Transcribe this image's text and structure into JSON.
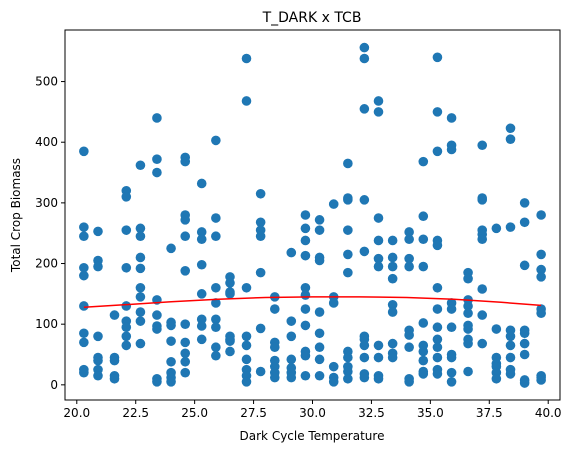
{
  "chart_data": {
    "type": "scatter",
    "title": "T_DARK x TCB",
    "xlabel": "Dark Cycle Temperature",
    "ylabel": "Total Crop Biomass",
    "xlim": [
      19.5,
      40.5
    ],
    "ylim": [
      -25,
      585
    ],
    "xticks": [
      "20.0",
      "22.5",
      "25.0",
      "27.5",
      "30.0",
      "32.5",
      "35.0",
      "37.5",
      "40.0"
    ],
    "yticks": [
      "0",
      "100",
      "200",
      "300",
      "400",
      "500"
    ],
    "grid": false,
    "point_color": "#1f77b4",
    "trend_color": "#ff0000",
    "points": [
      [
        20.3,
        385
      ],
      [
        20.3,
        260
      ],
      [
        20.3,
        245
      ],
      [
        20.3,
        193
      ],
      [
        20.3,
        180
      ],
      [
        20.3,
        130
      ],
      [
        20.3,
        85
      ],
      [
        20.3,
        70
      ],
      [
        20.3,
        25
      ],
      [
        20.3,
        20
      ],
      [
        20.9,
        253
      ],
      [
        20.9,
        205
      ],
      [
        20.9,
        195
      ],
      [
        20.9,
        80
      ],
      [
        20.9,
        45
      ],
      [
        20.9,
        40
      ],
      [
        20.9,
        25
      ],
      [
        20.9,
        15
      ],
      [
        21.6,
        115
      ],
      [
        21.6,
        45
      ],
      [
        21.6,
        40
      ],
      [
        21.6,
        15
      ],
      [
        21.6,
        10
      ],
      [
        22.1,
        320
      ],
      [
        22.1,
        310
      ],
      [
        22.1,
        255
      ],
      [
        22.1,
        193
      ],
      [
        22.1,
        130
      ],
      [
        22.1,
        105
      ],
      [
        22.1,
        95
      ],
      [
        22.1,
        80
      ],
      [
        22.1,
        65
      ],
      [
        22.7,
        362
      ],
      [
        22.7,
        258
      ],
      [
        22.7,
        245
      ],
      [
        22.7,
        210
      ],
      [
        22.7,
        192
      ],
      [
        22.7,
        160
      ],
      [
        22.7,
        145
      ],
      [
        22.7,
        120
      ],
      [
        22.7,
        105
      ],
      [
        22.7,
        68
      ],
      [
        23.4,
        440
      ],
      [
        23.4,
        372
      ],
      [
        23.4,
        350
      ],
      [
        23.4,
        140
      ],
      [
        23.4,
        115
      ],
      [
        23.4,
        97
      ],
      [
        23.4,
        92
      ],
      [
        23.4,
        10
      ],
      [
        23.4,
        5
      ],
      [
        24.0,
        225
      ],
      [
        24.0,
        103
      ],
      [
        24.0,
        98
      ],
      [
        24.0,
        72
      ],
      [
        24.0,
        38
      ],
      [
        24.0,
        20
      ],
      [
        24.0,
        12
      ],
      [
        24.0,
        5
      ],
      [
        24.6,
        375
      ],
      [
        24.6,
        368
      ],
      [
        24.6,
        280
      ],
      [
        24.6,
        272
      ],
      [
        24.6,
        245
      ],
      [
        24.6,
        188
      ],
      [
        24.6,
        100
      ],
      [
        24.6,
        70
      ],
      [
        24.6,
        52
      ],
      [
        24.6,
        38
      ],
      [
        24.6,
        20
      ],
      [
        25.3,
        332
      ],
      [
        25.3,
        252
      ],
      [
        25.3,
        240
      ],
      [
        25.3,
        198
      ],
      [
        25.3,
        150
      ],
      [
        25.3,
        108
      ],
      [
        25.3,
        97
      ],
      [
        25.3,
        75
      ],
      [
        25.9,
        403
      ],
      [
        25.9,
        275
      ],
      [
        25.9,
        245
      ],
      [
        25.9,
        160
      ],
      [
        25.9,
        135
      ],
      [
        25.9,
        108
      ],
      [
        25.9,
        95
      ],
      [
        25.9,
        62
      ],
      [
        25.9,
        48
      ],
      [
        26.5,
        178
      ],
      [
        26.5,
        168
      ],
      [
        26.5,
        153
      ],
      [
        26.5,
        150
      ],
      [
        26.5,
        80
      ],
      [
        26.5,
        75
      ],
      [
        26.5,
        72
      ],
      [
        26.5,
        55
      ],
      [
        27.2,
        538
      ],
      [
        27.2,
        468
      ],
      [
        27.2,
        160
      ],
      [
        27.2,
        80
      ],
      [
        27.2,
        65
      ],
      [
        27.2,
        42
      ],
      [
        27.2,
        25
      ],
      [
        27.2,
        15
      ],
      [
        27.2,
        5
      ],
      [
        27.8,
        315
      ],
      [
        27.8,
        268
      ],
      [
        27.8,
        255
      ],
      [
        27.8,
        245
      ],
      [
        27.8,
        185
      ],
      [
        27.8,
        93
      ],
      [
        27.8,
        22
      ],
      [
        28.4,
        145
      ],
      [
        28.4,
        125
      ],
      [
        28.4,
        70
      ],
      [
        28.4,
        62
      ],
      [
        28.4,
        40
      ],
      [
        28.4,
        30
      ],
      [
        28.4,
        20
      ],
      [
        28.4,
        12
      ],
      [
        29.1,
        218
      ],
      [
        29.1,
        105
      ],
      [
        29.1,
        80
      ],
      [
        29.1,
        42
      ],
      [
        29.1,
        28
      ],
      [
        29.1,
        20
      ],
      [
        29.1,
        12
      ],
      [
        29.7,
        280
      ],
      [
        29.7,
        258
      ],
      [
        29.7,
        238
      ],
      [
        29.7,
        213
      ],
      [
        29.7,
        160
      ],
      [
        29.7,
        148
      ],
      [
        29.7,
        125
      ],
      [
        29.7,
        98
      ],
      [
        29.7,
        55
      ],
      [
        29.7,
        48
      ],
      [
        29.7,
        15
      ],
      [
        30.3,
        272
      ],
      [
        30.3,
        255
      ],
      [
        30.3,
        210
      ],
      [
        30.3,
        205
      ],
      [
        30.3,
        120
      ],
      [
        30.3,
        85
      ],
      [
        30.3,
        62
      ],
      [
        30.3,
        42
      ],
      [
        30.3,
        15
      ],
      [
        30.9,
        298
      ],
      [
        30.9,
        145
      ],
      [
        30.9,
        135
      ],
      [
        30.9,
        30
      ],
      [
        30.9,
        12
      ],
      [
        30.9,
        5
      ],
      [
        31.5,
        365
      ],
      [
        31.5,
        308
      ],
      [
        31.5,
        305
      ],
      [
        31.5,
        255
      ],
      [
        31.5,
        215
      ],
      [
        31.5,
        185
      ],
      [
        31.5,
        55
      ],
      [
        31.5,
        45
      ],
      [
        31.5,
        30
      ],
      [
        31.5,
        22
      ],
      [
        31.5,
        10
      ],
      [
        32.2,
        556
      ],
      [
        32.2,
        538
      ],
      [
        32.2,
        455
      ],
      [
        32.2,
        305
      ],
      [
        32.2,
        220
      ],
      [
        32.2,
        80
      ],
      [
        32.2,
        75
      ],
      [
        32.2,
        65
      ],
      [
        32.2,
        45
      ],
      [
        32.2,
        18
      ],
      [
        32.2,
        12
      ],
      [
        32.8,
        468
      ],
      [
        32.8,
        450
      ],
      [
        32.8,
        275
      ],
      [
        32.8,
        238
      ],
      [
        32.8,
        208
      ],
      [
        32.8,
        195
      ],
      [
        32.8,
        65
      ],
      [
        32.8,
        45
      ],
      [
        32.8,
        15
      ],
      [
        32.8,
        10
      ],
      [
        33.4,
        238
      ],
      [
        33.4,
        210
      ],
      [
        33.4,
        195
      ],
      [
        33.4,
        175
      ],
      [
        33.4,
        132
      ],
      [
        33.4,
        120
      ],
      [
        33.4,
        68
      ],
      [
        33.4,
        52
      ],
      [
        33.4,
        45
      ],
      [
        34.1,
        252
      ],
      [
        34.1,
        240
      ],
      [
        34.1,
        208
      ],
      [
        34.1,
        195
      ],
      [
        34.1,
        90
      ],
      [
        34.1,
        82
      ],
      [
        34.1,
        62
      ],
      [
        34.1,
        10
      ],
      [
        34.1,
        5
      ],
      [
        34.7,
        368
      ],
      [
        34.7,
        278
      ],
      [
        34.7,
        240
      ],
      [
        34.7,
        195
      ],
      [
        34.7,
        102
      ],
      [
        34.7,
        65
      ],
      [
        34.7,
        55
      ],
      [
        34.7,
        40
      ],
      [
        34.7,
        22
      ],
      [
        34.7,
        18
      ],
      [
        35.3,
        540
      ],
      [
        35.3,
        450
      ],
      [
        35.3,
        385
      ],
      [
        35.3,
        238
      ],
      [
        35.3,
        230
      ],
      [
        35.3,
        160
      ],
      [
        35.3,
        125
      ],
      [
        35.3,
        95
      ],
      [
        35.3,
        75
      ],
      [
        35.3,
        62
      ],
      [
        35.3,
        45
      ],
      [
        35.3,
        25
      ],
      [
        35.3,
        18
      ],
      [
        35.9,
        440
      ],
      [
        35.9,
        395
      ],
      [
        35.9,
        388
      ],
      [
        35.9,
        135
      ],
      [
        35.9,
        125
      ],
      [
        35.9,
        95
      ],
      [
        35.9,
        50
      ],
      [
        35.9,
        45
      ],
      [
        35.9,
        20
      ],
      [
        35.9,
        5
      ],
      [
        36.6,
        185
      ],
      [
        36.6,
        175
      ],
      [
        36.6,
        140
      ],
      [
        36.6,
        130
      ],
      [
        36.6,
        118
      ],
      [
        36.6,
        98
      ],
      [
        36.6,
        92
      ],
      [
        36.6,
        75
      ],
      [
        36.6,
        68
      ],
      [
        36.6,
        22
      ],
      [
        37.2,
        395
      ],
      [
        37.2,
        308
      ],
      [
        37.2,
        305
      ],
      [
        37.2,
        255
      ],
      [
        37.2,
        248
      ],
      [
        37.2,
        240
      ],
      [
        37.2,
        158
      ],
      [
        37.2,
        115
      ],
      [
        37.2,
        68
      ],
      [
        37.8,
        258
      ],
      [
        37.8,
        92
      ],
      [
        37.8,
        45
      ],
      [
        37.8,
        35
      ],
      [
        37.8,
        30
      ],
      [
        37.8,
        20
      ],
      [
        37.8,
        10
      ],
      [
        38.4,
        423
      ],
      [
        38.4,
        405
      ],
      [
        38.4,
        260
      ],
      [
        38.4,
        90
      ],
      [
        38.4,
        80
      ],
      [
        38.4,
        65
      ],
      [
        38.4,
        45
      ],
      [
        38.4,
        25
      ],
      [
        38.4,
        18
      ],
      [
        39.0,
        300
      ],
      [
        39.0,
        268
      ],
      [
        39.0,
        197
      ],
      [
        39.0,
        90
      ],
      [
        39.0,
        85
      ],
      [
        39.0,
        68
      ],
      [
        39.0,
        50
      ],
      [
        39.0,
        8
      ],
      [
        39.0,
        3
      ],
      [
        39.7,
        280
      ],
      [
        39.7,
        215
      ],
      [
        39.7,
        190
      ],
      [
        39.7,
        178
      ],
      [
        39.7,
        125
      ],
      [
        39.7,
        118
      ],
      [
        39.7,
        15
      ],
      [
        39.7,
        12
      ],
      [
        39.7,
        8
      ]
    ],
    "trend": {
      "x": [
        20.3,
        22.0,
        24.0,
        26.0,
        28.0,
        30.0,
        32.0,
        34.0,
        36.0,
        38.0,
        39.7
      ],
      "y": [
        128,
        132,
        137,
        141,
        144,
        145,
        145,
        144,
        141,
        136,
        131
      ]
    }
  }
}
